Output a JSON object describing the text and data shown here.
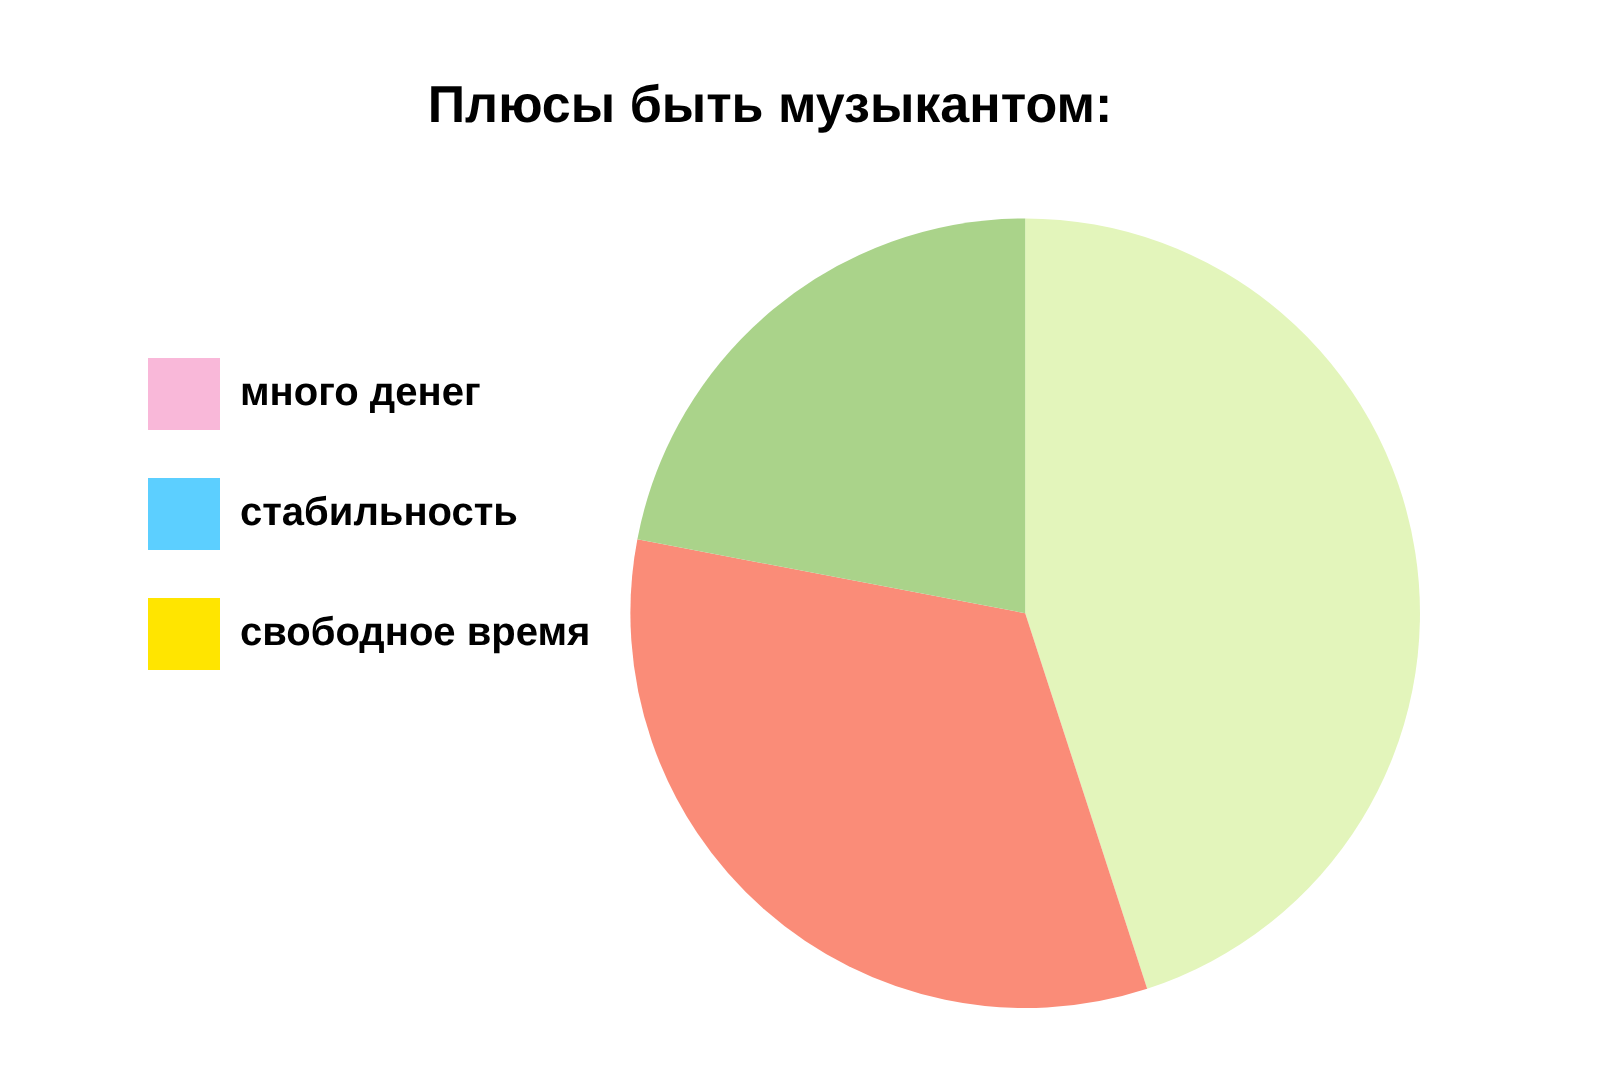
{
  "chart_data": {
    "type": "pie",
    "title": "Плюсы быть музыкантом:",
    "categories": [
      "много денег",
      "стабильность",
      "свободное время",
      null,
      null,
      null
    ],
    "values": [
      0,
      0,
      0,
      45,
      33,
      22
    ],
    "colors": [
      "#f9b8d9",
      "#5ccfff",
      "#ffe500",
      "#e3f5bb",
      "#fa8c78",
      "#aad38a"
    ],
    "legend": "left"
  }
}
